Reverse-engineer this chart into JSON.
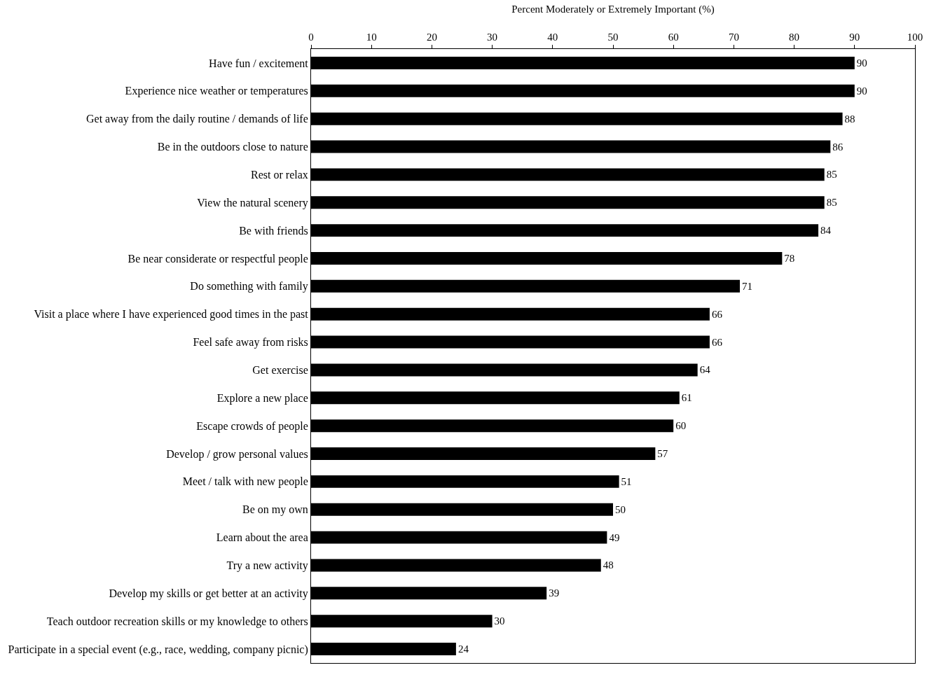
{
  "chart_data": {
    "type": "bar",
    "orientation": "horizontal",
    "xlabel": "Percent Moderately or Extremely Important (%)",
    "categories": [
      "Have fun / excitement",
      "Experience nice weather or temperatures",
      "Get away from the daily routine / demands of life",
      "Be in the outdoors close to nature",
      "Rest or relax",
      "View the natural scenery",
      "Be with friends",
      "Be near considerate or respectful people",
      "Do something with family",
      "Visit a place where I have experienced good times in the past",
      "Feel safe away from risks",
      "Get exercise",
      "Explore a new place",
      "Escape crowds of people",
      "Develop / grow personal values",
      "Meet / talk with new people",
      "Be on my own",
      "Learn about the area",
      "Try a new activity",
      "Develop my skills or get better at an activity",
      "Teach outdoor recreation skills or my knowledge to others",
      "Participate in a special event (e.g., race, wedding, company picnic)"
    ],
    "values": [
      90,
      90,
      88,
      86,
      85,
      85,
      84,
      78,
      71,
      66,
      66,
      64,
      61,
      60,
      57,
      51,
      50,
      49,
      48,
      39,
      30,
      24
    ],
    "color": "#000000",
    "xlim": [
      0,
      100
    ],
    "xticks": [
      0,
      10,
      20,
      30,
      40,
      50,
      60,
      70,
      80,
      90,
      100
    ],
    "data_labels": true
  }
}
